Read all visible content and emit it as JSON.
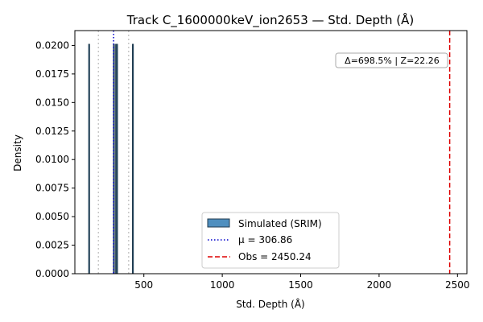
{
  "chart_data": {
    "type": "bar",
    "title": "Track C_1600000keV_ion2653 — Std. Depth (Å)",
    "xlabel": "Std. Depth (Å)",
    "ylabel": "Density",
    "xlim": [
      60,
      2560
    ],
    "ylim": [
      0,
      0.0213
    ],
    "xticks": [
      500,
      1000,
      1500,
      2000,
      2500
    ],
    "xtick_labels": [
      "500",
      "1000",
      "1500",
      "2000",
      "2500"
    ],
    "yticks": [
      0,
      0.0025,
      0.005,
      0.0075,
      0.01,
      0.0125,
      0.015,
      0.0175,
      0.02
    ],
    "ytick_labels": [
      "0.0000",
      "0.0025",
      "0.0050",
      "0.0075",
      "0.0100",
      "0.0125",
      "0.0150",
      "0.0175",
      "0.0200"
    ],
    "histogram": {
      "name": "Simulated (SRIM)",
      "color": "#4f8fbf",
      "edge_color": "#1f3a4d",
      "bins": [
        {
          "x0": 148,
          "x1": 154,
          "density": 0.0201
        },
        {
          "x0": 306,
          "x1": 312,
          "density": 0.0201
        },
        {
          "x0": 320,
          "x1": 326,
          "density": 0.0201
        },
        {
          "x0": 326,
          "x1": 332,
          "density": 0.0201
        },
        {
          "x0": 427,
          "x1": 433,
          "density": 0.0201
        }
      ]
    },
    "mean": {
      "value": 306.86,
      "color": "#0000cc",
      "label": "μ = 306.86"
    },
    "sigma_lines": {
      "values": [
        210,
        403
      ],
      "color": "#bbbbbb"
    },
    "observed": {
      "value": 2450.24,
      "color": "#dd0000",
      "label": "Obs = 2450.24"
    },
    "annotation": "Δ=698.5% | Z=22.26",
    "legend_position": "lower center",
    "grid": false
  }
}
